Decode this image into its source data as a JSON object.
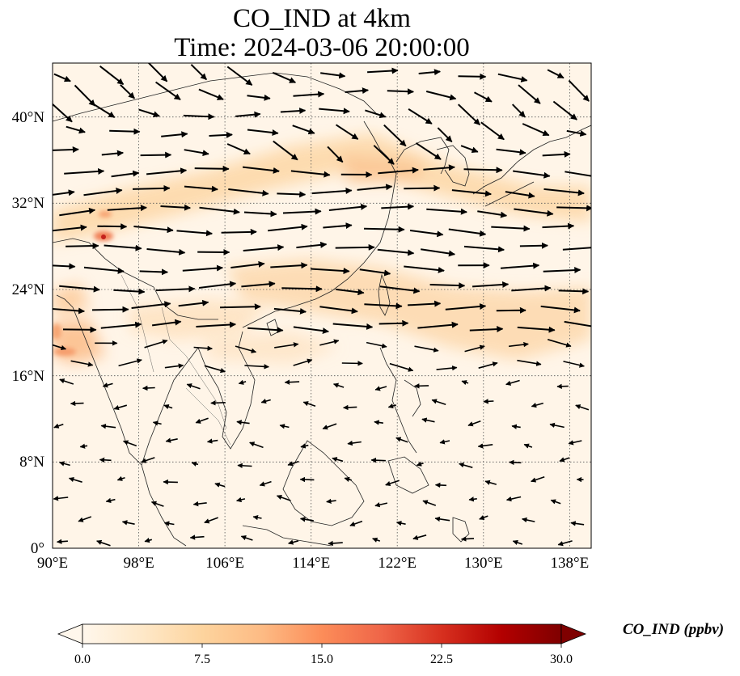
{
  "title": {
    "line1": "CO_IND at 4km",
    "line2": "Time: 2024-03-06 20:00:00"
  },
  "map": {
    "lon_range": [
      90,
      140
    ],
    "lat_range": [
      0,
      45
    ],
    "lon_ticks": [
      90,
      98,
      106,
      114,
      122,
      130,
      138
    ],
    "lat_ticks": [
      0,
      8,
      16,
      24,
      32,
      40
    ],
    "lon_tick_labels": [
      "90°E",
      "98°E",
      "106°E",
      "114°E",
      "122°E",
      "130°E",
      "138°E"
    ],
    "lat_tick_labels": [
      "0°",
      "8°N",
      "16°N",
      "24°N",
      "32°N",
      "40°N"
    ],
    "gridlines": "dotted"
  },
  "colorbar": {
    "label": "CO_IND (ppbv)",
    "colormap": "OrRd",
    "range": [
      0,
      30
    ],
    "ticks": [
      0,
      7.5,
      15,
      22.5,
      30
    ],
    "tick_labels": [
      "0.0",
      "7.5",
      "15.0",
      "22.5",
      "30.0"
    ],
    "extend": "both",
    "colors": [
      "#fff7ec",
      "#fee8c8",
      "#fdd49e",
      "#fdbb84",
      "#fc8d59",
      "#ef6548",
      "#d7301f",
      "#b30000",
      "#7f0000"
    ]
  }
}
